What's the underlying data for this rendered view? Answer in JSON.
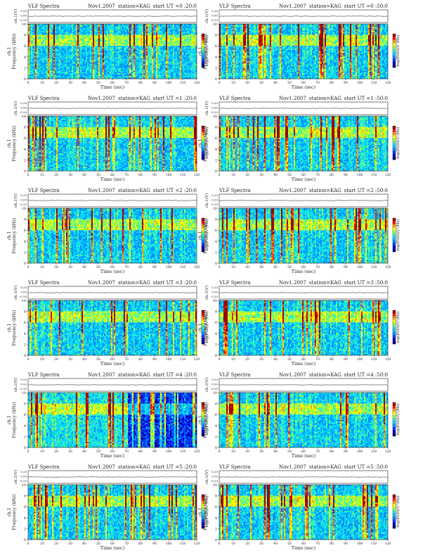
{
  "colors": {
    "background": "#ffffff",
    "axis": "#222222",
    "colormap": [
      "#00007a",
      "#0000c8",
      "#0040ff",
      "#0090ff",
      "#00d0ff",
      "#30f0c0",
      "#a0ff40",
      "#ffff00",
      "#ffa000",
      "#ff2000",
      "#a00000"
    ],
    "baseline_trace": "#555555"
  },
  "common": {
    "header_left": "VLF Spectra",
    "header_date": "Nov1.2007",
    "header_station": "station=KAG",
    "top_ylabel": "ch.1(V)",
    "top_yticks": [
      "0.20",
      "0.00",
      "-0.20"
    ],
    "ylabel_ch": "ch.1",
    "ylabel_freq": "Frequency (kHz)",
    "yticks": [
      "0",
      "2",
      "4",
      "6",
      "8",
      "10"
    ],
    "xticks": [
      "0",
      "10",
      "20",
      "30",
      "40",
      "50",
      "60",
      "70",
      "80",
      "90",
      "100",
      "110",
      "120"
    ],
    "xlabel": "Time  (sec)",
    "colorbar_label": "log(PSD)(V²/Hz)",
    "colorbar_ticks": [
      "-",
      "-"
    ]
  },
  "chart_data": [
    {
      "type": "heatmap",
      "start_ut": "start  UT =0 :20:0",
      "xlim": [
        0,
        120
      ],
      "ylim": [
        0,
        10
      ],
      "description_features": [
        "noise",
        "bright 6-8 kHz band"
      ]
    },
    {
      "type": "heatmap",
      "start_ut": "start  UT =0 :50:0",
      "xlim": [
        0,
        120
      ],
      "ylim": [
        0,
        10
      ]
    },
    {
      "type": "heatmap",
      "start_ut": "start  UT =1 :20:0",
      "xlim": [
        0,
        120
      ],
      "ylim": [
        0,
        10
      ]
    },
    {
      "type": "heatmap",
      "start_ut": "start  UT =1 :50:0",
      "xlim": [
        0,
        120
      ],
      "ylim": [
        0,
        10
      ]
    },
    {
      "type": "heatmap",
      "start_ut": "start  UT =2 :20:0",
      "xlim": [
        0,
        120
      ],
      "ylim": [
        0,
        10
      ]
    },
    {
      "type": "heatmap",
      "start_ut": "start  UT =2 :50:0",
      "xlim": [
        0,
        120
      ],
      "ylim": [
        0,
        10
      ]
    },
    {
      "type": "heatmap",
      "start_ut": "start  UT =3 :20:0",
      "xlim": [
        0,
        120
      ],
      "ylim": [
        0,
        10
      ]
    },
    {
      "type": "heatmap",
      "start_ut": "start  UT =3 :50:0",
      "xlim": [
        0,
        120
      ],
      "ylim": [
        0,
        10
      ]
    },
    {
      "type": "heatmap",
      "start_ut": "start  UT =4 :20:0",
      "xlim": [
        0,
        120
      ],
      "ylim": [
        0,
        10
      ]
    },
    {
      "type": "heatmap",
      "start_ut": "start  UT =4 :50:0",
      "xlim": [
        0,
        120
      ],
      "ylim": [
        0,
        10
      ]
    },
    {
      "type": "heatmap",
      "start_ut": "start  UT =5 :20:0",
      "xlim": [
        0,
        120
      ],
      "ylim": [
        0,
        10
      ]
    },
    {
      "type": "heatmap",
      "start_ut": "start  UT =5 :50:0",
      "xlim": [
        0,
        120
      ],
      "ylim": [
        0,
        10
      ]
    }
  ]
}
